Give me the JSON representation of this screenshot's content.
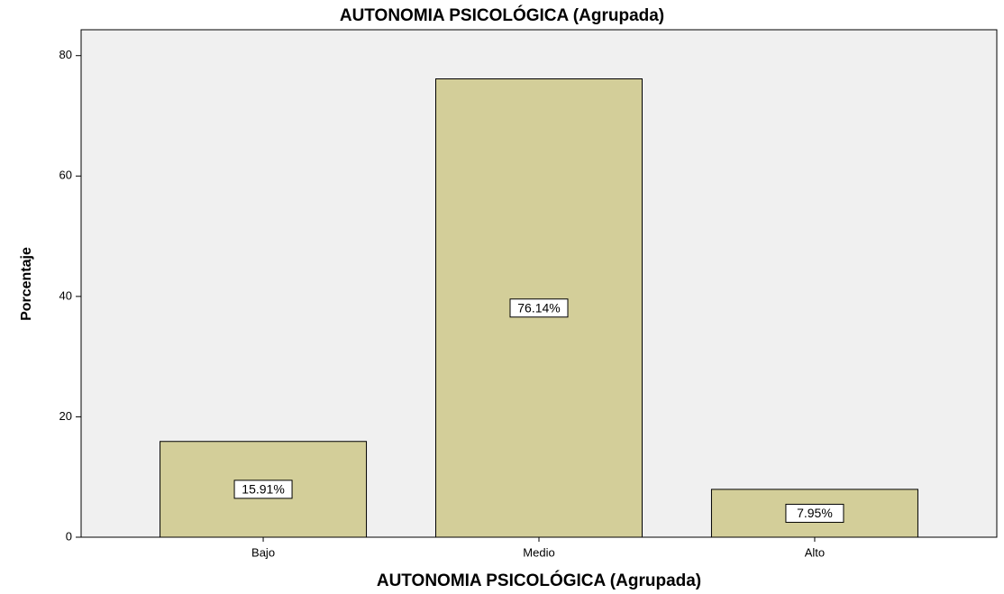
{
  "chart_data": {
    "type": "bar",
    "title": "AUTONOMIA PSICOLÓGICA (Agrupada)",
    "x_label": "AUTONOMIA PSICOLÓGICA (Agrupada)",
    "y_label": "Porcentaje",
    "categories": [
      "Bajo",
      "Medio",
      "Alto"
    ],
    "values": [
      15.91,
      76.14,
      7.95
    ],
    "value_labels": [
      "15.91%",
      "76.14%",
      "7.95%"
    ],
    "color": "#d3ce99",
    "ylim": [
      0,
      84.3
    ],
    "yticks": [
      0,
      20,
      40,
      60,
      80
    ],
    "grid": false
  }
}
